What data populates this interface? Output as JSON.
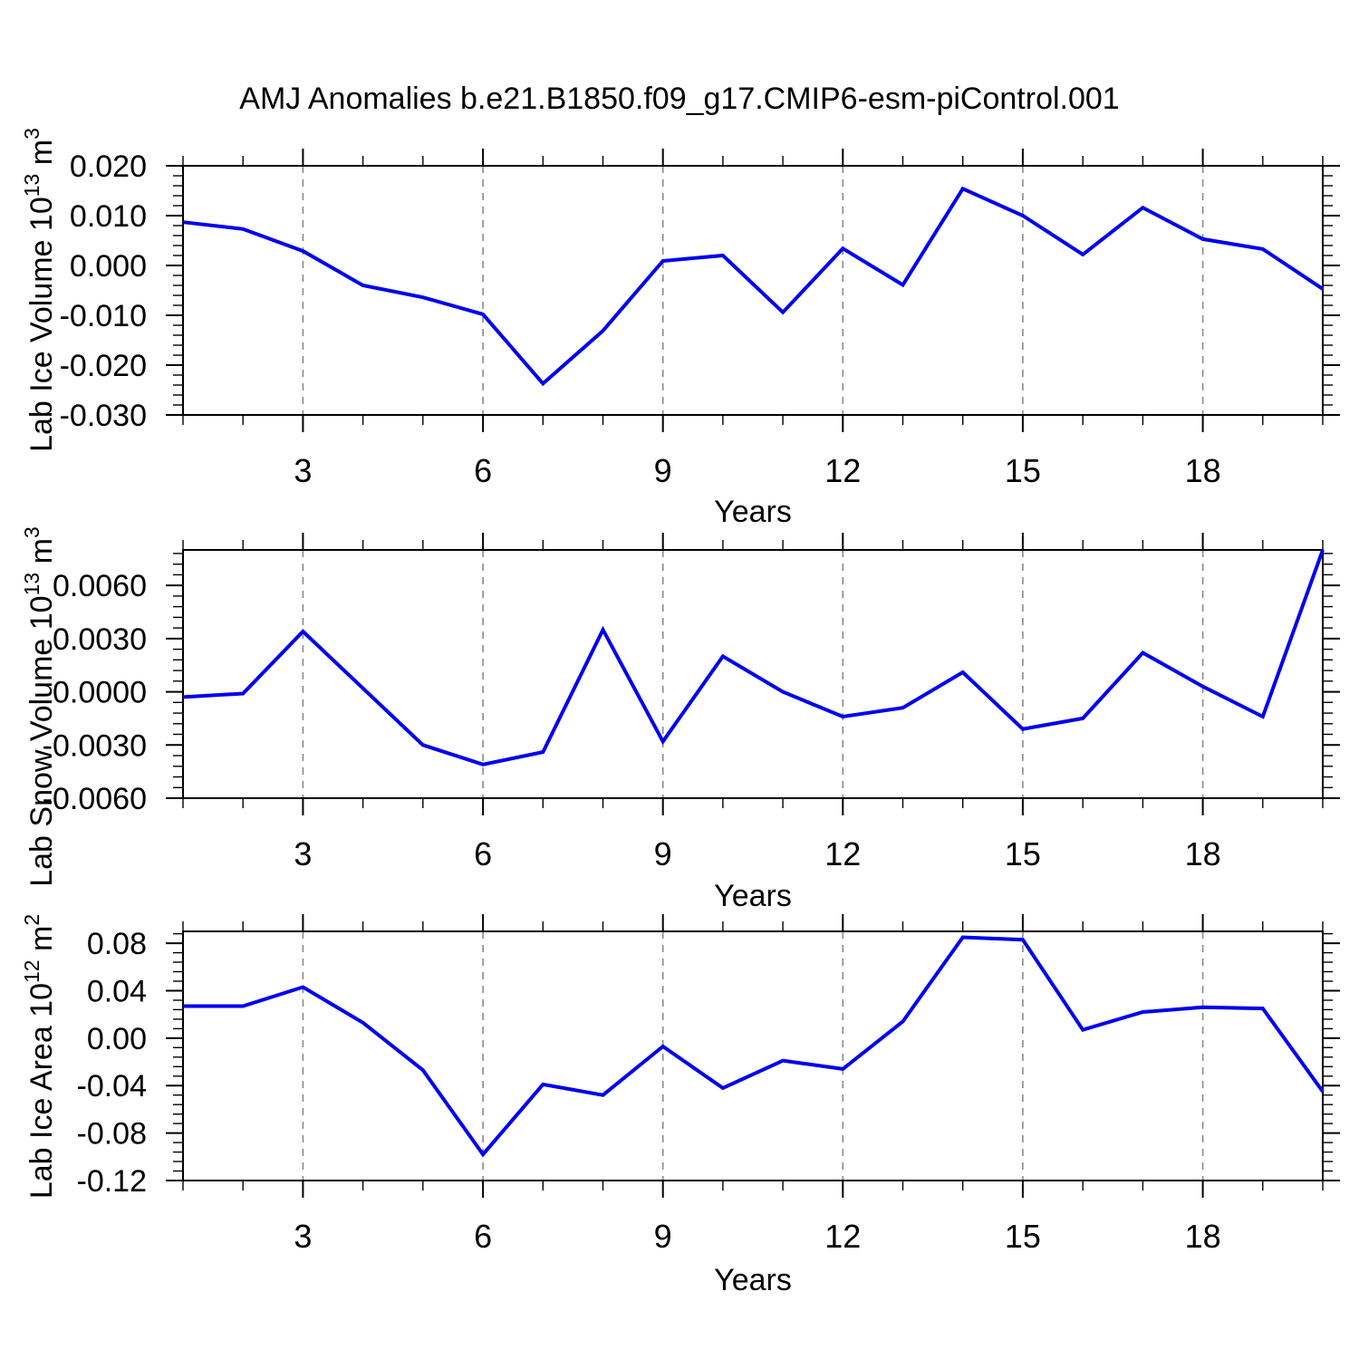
{
  "title": "AMJ Anomalies b.e21.B1850.f09_g17.CMIP6-esm-piControl.001",
  "colors": {
    "line": "#0000ee",
    "axis": "#000000",
    "grid": "#8a8a8a",
    "background": "#ffffff"
  },
  "chart_data": [
    {
      "type": "line",
      "panel": "top",
      "ylabel": "Lab Ice Volume 10^13 m^3",
      "ylabel_parts": {
        "text": "Lab Ice Volume 10",
        "exponent": "13",
        "unit": " m",
        "unit_exponent": "3"
      },
      "xlabel": "Years",
      "x": [
        1,
        2,
        3,
        4,
        5,
        6,
        7,
        8,
        9,
        10,
        11,
        12,
        13,
        14,
        15,
        16,
        17,
        18,
        19,
        20
      ],
      "values": [
        0.0087,
        0.0073,
        0.0029,
        -0.004,
        -0.0064,
        -0.0098,
        -0.0237,
        -0.0131,
        0.0009,
        0.002,
        -0.0094,
        0.0034,
        -0.0039,
        0.0154,
        0.01,
        0.0022,
        0.0116,
        0.0053,
        0.0033,
        -0.0047
      ],
      "ylim": [
        -0.03,
        0.02
      ],
      "yticks": [
        0.02,
        0.01,
        0.0,
        -0.01,
        -0.02,
        -0.03
      ],
      "ytick_labels": [
        "0.020",
        "0.010",
        "0.000",
        "-0.010",
        "-0.020",
        "-0.030"
      ],
      "ytick_minor": 0.002,
      "xticks_major": [
        3,
        6,
        9,
        12,
        15,
        18
      ],
      "xtick_labels": [
        "3",
        "6",
        "9",
        "12",
        "15",
        "18"
      ],
      "grid": "vertical-dashed",
      "legend": "none"
    },
    {
      "type": "line",
      "panel": "middle",
      "ylabel": "Lab Snow Volume 10^13 m^3",
      "ylabel_parts": {
        "text": "Lab Snow Volume 10",
        "exponent": "13",
        "unit": " m",
        "unit_exponent": "3"
      },
      "xlabel": "Years",
      "x": [
        1,
        2,
        3,
        4,
        5,
        6,
        7,
        8,
        9,
        10,
        11,
        12,
        13,
        14,
        15,
        16,
        17,
        18,
        19,
        20
      ],
      "values": [
        -0.0003,
        -0.0001,
        0.0034,
        0.0002,
        -0.003,
        -0.0041,
        -0.0034,
        0.0035,
        -0.0028,
        0.002,
        0.0,
        -0.0014,
        -0.0009,
        0.0011,
        -0.0021,
        -0.0015,
        0.0022,
        0.0003,
        -0.0014,
        0.008
      ],
      "ylim": [
        -0.006,
        0.008
      ],
      "yticks": [
        0.006,
        0.003,
        0.0,
        -0.003,
        -0.006
      ],
      "ytick_labels": [
        "0.0060",
        "0.0030",
        "0.0000",
        "-0.0030",
        "-0.0060"
      ],
      "ytick_minor": 0.0006,
      "xticks_major": [
        3,
        6,
        9,
        12,
        15,
        18
      ],
      "xtick_labels": [
        "3",
        "6",
        "9",
        "12",
        "15",
        "18"
      ],
      "grid": "vertical-dashed",
      "legend": "none"
    },
    {
      "type": "line",
      "panel": "bottom",
      "ylabel": "Lab Ice Area 10^12 m^2",
      "ylabel_parts": {
        "text": "Lab Ice Area 10",
        "exponent": "12",
        "unit": " m",
        "unit_exponent": "2"
      },
      "xlabel": "Years",
      "x": [
        1,
        2,
        3,
        4,
        5,
        6,
        7,
        8,
        9,
        10,
        11,
        12,
        13,
        14,
        15,
        16,
        17,
        18,
        19,
        20
      ],
      "values": [
        0.027,
        0.027,
        0.043,
        0.013,
        -0.027,
        -0.098,
        -0.039,
        -0.048,
        -0.007,
        -0.042,
        -0.019,
        -0.026,
        0.014,
        0.085,
        0.083,
        0.007,
        0.022,
        0.026,
        0.025,
        -0.045
      ],
      "ylim": [
        -0.12,
        0.09
      ],
      "yticks": [
        0.08,
        0.04,
        0.0,
        -0.04,
        -0.08,
        -0.12
      ],
      "ytick_labels": [
        "0.08",
        "0.04",
        "0.00",
        "-0.04",
        "-0.08",
        "-0.12"
      ],
      "ytick_minor": 0.008,
      "xticks_major": [
        3,
        6,
        9,
        12,
        15,
        18
      ],
      "xtick_labels": [
        "3",
        "6",
        "9",
        "12",
        "15",
        "18"
      ],
      "grid": "vertical-dashed",
      "legend": "none"
    }
  ]
}
